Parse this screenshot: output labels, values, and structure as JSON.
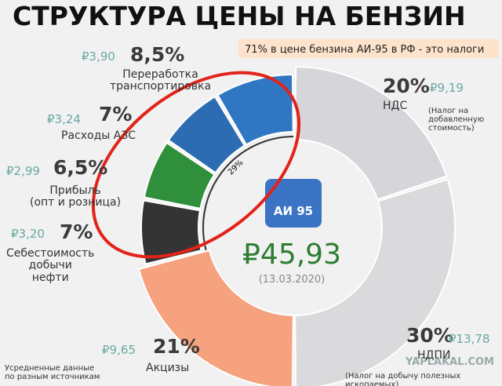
{
  "chart_data": {
    "type": "donut",
    "title": "СТРУКТУРА ЦЕНЫ НА БЕНЗИН",
    "subtitle": "71% в цене бензина АИ-95 в РФ - это налоги",
    "categories": [
      "НДС",
      "НДПИ",
      "Акцизы",
      "Себестоимость\nдобычи\nнефти",
      "Прибыль\n(опт и розница)",
      "Расходы АЗС",
      "Переработка\nтранспортировка"
    ],
    "values": [
      20,
      30,
      21,
      7,
      6.5,
      7,
      8.5
    ],
    "value_labels": [
      "20%",
      "30%",
      "21%",
      "7%",
      "6,5%",
      "7%",
      "8,5%"
    ],
    "prices": [
      {
        "value": 9.19,
        "label": "₽9,19"
      },
      {
        "value": 13.78,
        "label": "₽13,78"
      },
      {
        "value": 9.65,
        "label": "₽9,65"
      },
      {
        "value": 3.2,
        "label": "₽3,20"
      },
      {
        "value": 2.99,
        "label": "₽2,99"
      },
      {
        "value": 3.24,
        "label": "₽3,24"
      },
      {
        "value": 3.9,
        "label": "₽3,90"
      }
    ],
    "colors": [
      "#d6d6da",
      "#dadadd",
      "#f6a27e",
      "#343434",
      "#2f8f3a",
      "#2b6cb3",
      "#2f77c2"
    ],
    "nds_note": "(Налог на\nдобавленную\nстоимость)",
    "ndpi_note": "(Налог на добычу полезных ископаемых)",
    "group": {
      "value": 29,
      "label": "29%"
    },
    "center_label": "АИ 95",
    "center_value": {
      "value": 45.93,
      "label": "₽45,93"
    },
    "center_date": "(13.03.2020)",
    "footnote": "Усредненные данные\nпо разным источникам",
    "watermark": "YAPLAKAL.COM"
  }
}
